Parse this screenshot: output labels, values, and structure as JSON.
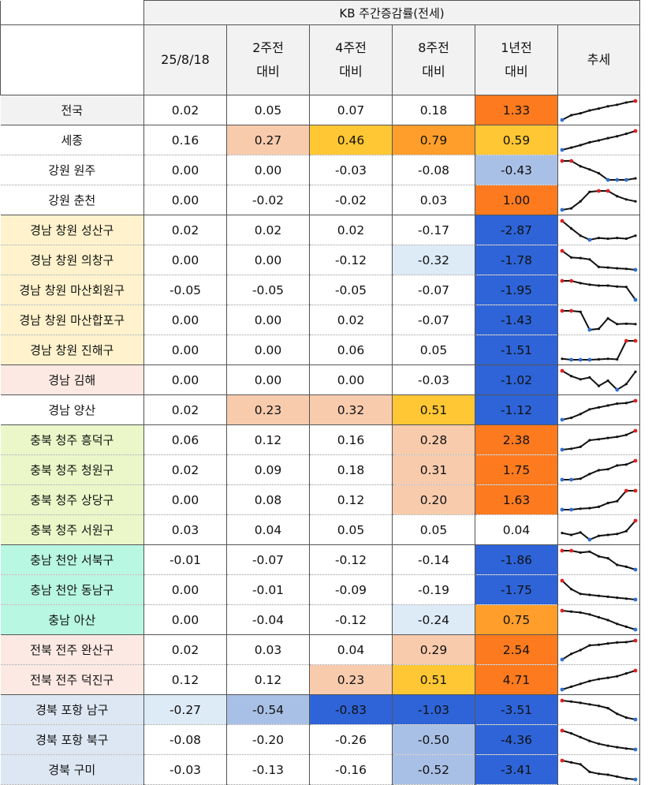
{
  "table": {
    "title": "KB 주간증감률(전세)",
    "columns": [
      {
        "line1": "25/8/18",
        "line2": ""
      },
      {
        "line1": "2주전",
        "line2": "대비"
      },
      {
        "line1": "4주전",
        "line2": "대비"
      },
      {
        "line1": "8주전",
        "line2": "대비"
      },
      {
        "line1": "1년전",
        "line2": "대비"
      },
      {
        "line1": "추세",
        "line2": ""
      }
    ],
    "rows": [
      {
        "region": "전국",
        "regionBg": "#f2f2f2",
        "values": [
          "0.02",
          "0.05",
          "0.07",
          "0.18",
          "1.33"
        ],
        "bgs": [
          "",
          "",
          "",
          "",
          "#fe7a1e"
        ],
        "trend": [
          0.0,
          0.25,
          0.35,
          0.5,
          0.6,
          0.72,
          0.8,
          0.92,
          1.0
        ],
        "groupTop": true
      },
      {
        "region": "세종",
        "regionBg": "#ffffff",
        "values": [
          "0.16",
          "0.27",
          "0.46",
          "0.79",
          "0.59"
        ],
        "bgs": [
          "",
          "#f8cbad",
          "#ffc733",
          "#ff9e2a",
          "#ffc733"
        ],
        "trend": [
          0.0,
          0.12,
          0.25,
          0.4,
          0.5,
          0.62,
          0.72,
          0.85,
          1.0
        ],
        "groupTop": true
      },
      {
        "region": "강원 원주",
        "regionBg": "#ffffff",
        "values": [
          "0.00",
          "0.00",
          "-0.03",
          "-0.08",
          "-0.43"
        ],
        "bgs": [
          "",
          "",
          "",
          "",
          "#a9c0e6"
        ],
        "trend": [
          1.0,
          1.0,
          0.72,
          0.55,
          0.35,
          0.0,
          0.0,
          0.0,
          0.08
        ]
      },
      {
        "region": "강원 춘천",
        "regionBg": "#ffffff",
        "values": [
          "0.00",
          "-0.02",
          "-0.02",
          "0.03",
          "1.00"
        ],
        "bgs": [
          "",
          "",
          "",
          "",
          "#fe7a1e"
        ],
        "trend": [
          0.0,
          0.08,
          0.45,
          0.95,
          1.0,
          1.0,
          0.72,
          0.55,
          0.45
        ]
      },
      {
        "region": "경남 창원 성산구",
        "regionBg": "#fff2cc",
        "values": [
          "0.02",
          "0.02",
          "0.02",
          "-0.17",
          "-2.87"
        ],
        "bgs": [
          "",
          "",
          "",
          "",
          "#2e64d8"
        ],
        "trend": [
          1.0,
          0.6,
          0.22,
          0.0,
          0.1,
          0.06,
          0.1,
          0.06,
          0.22
        ],
        "groupTop": true
      },
      {
        "region": "경남 창원 의창구",
        "regionBg": "#fff2cc",
        "values": [
          "0.00",
          "0.00",
          "-0.12",
          "-0.32",
          "-1.78"
        ],
        "bgs": [
          "",
          "",
          "",
          "#ddebf7",
          "#2e64d8"
        ],
        "trend": [
          1.0,
          0.65,
          0.62,
          0.55,
          0.15,
          0.12,
          0.08,
          0.05,
          0.0
        ]
      },
      {
        "region": "경남 창원 마산회원구",
        "regionBg": "#fff2cc",
        "values": [
          "-0.05",
          "-0.05",
          "-0.05",
          "-0.07",
          "-1.95"
        ],
        "bgs": [
          "",
          "",
          "",
          "",
          "#2e64d8"
        ],
        "trend": [
          1.0,
          1.0,
          0.88,
          0.8,
          0.75,
          0.75,
          0.7,
          0.68,
          0.0
        ]
      },
      {
        "region": "경남 창원 마산합포구",
        "regionBg": "#fff2cc",
        "values": [
          "0.00",
          "0.00",
          "0.02",
          "-0.07",
          "-1.43"
        ],
        "bgs": [
          "",
          "",
          "",
          "",
          "#2e64d8"
        ],
        "trend": [
          1.0,
          1.0,
          0.95,
          0.0,
          0.05,
          0.6,
          0.3,
          0.32,
          0.3
        ]
      },
      {
        "region": "경남 창원 진해구",
        "regionBg": "#fff2cc",
        "values": [
          "0.00",
          "0.00",
          "0.06",
          "0.05",
          "-1.51"
        ],
        "bgs": [
          "",
          "",
          "",
          "",
          "#2e64d8"
        ],
        "trend": [
          0.05,
          0.0,
          0.0,
          0.0,
          0.02,
          0.05,
          0.02,
          1.0,
          1.0
        ]
      },
      {
        "region": "경남 김해",
        "regionBg": "#fde9e3",
        "values": [
          "0.00",
          "0.00",
          "0.00",
          "-0.03",
          "-1.02"
        ],
        "bgs": [
          "",
          "",
          "",
          "",
          "#2e64d8"
        ],
        "trend": [
          1.0,
          0.72,
          0.55,
          0.65,
          0.2,
          0.48,
          0.0,
          0.3,
          0.95
        ],
        "groupTop": true
      },
      {
        "region": "경남 양산",
        "regionBg": "#ffffff",
        "values": [
          "0.02",
          "0.23",
          "0.32",
          "0.51",
          "-1.12"
        ],
        "bgs": [
          "",
          "#f8cbad",
          "#f8cbad",
          "#ffc733",
          "#2e64d8"
        ],
        "trend": [
          0.0,
          0.1,
          0.3,
          0.55,
          0.65,
          0.75,
          0.85,
          0.88,
          1.0
        ],
        "groupTop": true
      },
      {
        "region": "충북 청주 흥덕구",
        "regionBg": "#ebf7c8",
        "values": [
          "0.06",
          "0.12",
          "0.16",
          "0.28",
          "2.38"
        ],
        "bgs": [
          "",
          "",
          "",
          "#f8cbad",
          "#fe7a1e"
        ],
        "trend": [
          0.0,
          0.05,
          0.15,
          0.5,
          0.55,
          0.62,
          0.68,
          0.78,
          1.0
        ],
        "groupTop": true
      },
      {
        "region": "충북 청주 청원구",
        "regionBg": "#ebf7c8",
        "values": [
          "0.02",
          "0.09",
          "0.18",
          "0.31",
          "1.75"
        ],
        "bgs": [
          "",
          "",
          "",
          "#f8cbad",
          "#fe7a1e"
        ],
        "trend": [
          0.0,
          0.0,
          0.05,
          0.3,
          0.5,
          0.55,
          0.75,
          0.8,
          1.0
        ]
      },
      {
        "region": "충북 청주 상당구",
        "regionBg": "#ebf7c8",
        "values": [
          "0.00",
          "0.08",
          "0.12",
          "0.20",
          "1.63"
        ],
        "bgs": [
          "",
          "",
          "",
          "#f8cbad",
          "#fe7a1e"
        ],
        "trend": [
          0.0,
          0.0,
          0.05,
          0.08,
          0.15,
          0.35,
          0.45,
          1.0,
          1.0
        ]
      },
      {
        "region": "충북 청주 서원구",
        "regionBg": "#ebf7c8",
        "values": [
          "0.03",
          "0.04",
          "0.05",
          "0.05",
          "0.04"
        ],
        "bgs": [
          "",
          "",
          "",
          "",
          ""
        ],
        "trend": [
          0.35,
          0.25,
          0.38,
          0.0,
          0.2,
          0.25,
          0.3,
          0.45,
          1.0
        ]
      },
      {
        "region": "충남 천안 서북구",
        "regionBg": "#b8f7e2",
        "values": [
          "-0.01",
          "-0.07",
          "-0.12",
          "-0.14",
          "-1.86"
        ],
        "bgs": [
          "",
          "",
          "",
          "",
          "#2e64d8"
        ],
        "trend": [
          1.0,
          1.0,
          0.9,
          0.95,
          0.7,
          0.6,
          0.25,
          0.15,
          0.0
        ],
        "groupTop": true
      },
      {
        "region": "충남 천안 동남구",
        "regionBg": "#b8f7e2",
        "values": [
          "0.00",
          "-0.01",
          "-0.09",
          "-0.19",
          "-1.75"
        ],
        "bgs": [
          "",
          "",
          "",
          "",
          "#2e64d8"
        ],
        "trend": [
          1.0,
          0.55,
          0.3,
          0.25,
          0.2,
          0.15,
          0.1,
          0.05,
          0.0
        ]
      },
      {
        "region": "충남 아산",
        "regionBg": "#b8f7e2",
        "values": [
          "0.00",
          "-0.04",
          "-0.12",
          "-0.24",
          "0.75"
        ],
        "bgs": [
          "",
          "",
          "",
          "#ddebf7",
          "#ff9e2a"
        ],
        "trend": [
          1.0,
          0.95,
          0.9,
          0.8,
          0.65,
          0.5,
          0.3,
          0.15,
          0.0
        ]
      },
      {
        "region": "전북 전주 완산구",
        "regionBg": "#fde9e3",
        "values": [
          "0.02",
          "0.03",
          "0.04",
          "0.29",
          "2.54"
        ],
        "bgs": [
          "",
          "",
          "",
          "#f8cbad",
          "#fe7a1e"
        ],
        "trend": [
          0.0,
          0.3,
          0.5,
          0.75,
          0.78,
          0.85,
          0.9,
          0.92,
          1.0
        ],
        "groupTop": true
      },
      {
        "region": "전북 전주 덕진구",
        "regionBg": "#fde9e3",
        "values": [
          "0.12",
          "0.12",
          "0.23",
          "0.51",
          "4.71"
        ],
        "bgs": [
          "",
          "",
          "#f8cbad",
          "#ffc733",
          "#fe7a1e"
        ],
        "trend": [
          0.0,
          0.15,
          0.3,
          0.45,
          0.55,
          0.62,
          0.7,
          0.85,
          1.0
        ]
      },
      {
        "region": "경북 포항 남구",
        "regionBg": "#dde7f3",
        "values": [
          "-0.27",
          "-0.54",
          "-0.83",
          "-1.03",
          "-3.51"
        ],
        "bgs": [
          "#ddebf7",
          "#a9c0e6",
          "#2e64d8",
          "#2e64d8",
          "#2e64d8"
        ],
        "trend": [
          1.0,
          0.95,
          0.88,
          0.8,
          0.72,
          0.6,
          0.3,
          0.1,
          0.0
        ],
        "groupTop": true
      },
      {
        "region": "경북 포항 북구",
        "regionBg": "#dde7f3",
        "values": [
          "-0.08",
          "-0.20",
          "-0.26",
          "-0.50",
          "-4.36"
        ],
        "bgs": [
          "",
          "",
          "",
          "#a9c0e6",
          "#2e64d8"
        ],
        "trend": [
          1.0,
          0.85,
          0.65,
          0.45,
          0.3,
          0.2,
          0.12,
          0.05,
          0.0
        ]
      },
      {
        "region": "경북 구미",
        "regionBg": "#dde7f3",
        "values": [
          "-0.03",
          "-0.13",
          "-0.16",
          "-0.52",
          "-3.41"
        ],
        "bgs": [
          "",
          "",
          "",
          "#a9c0e6",
          "#2e64d8"
        ],
        "trend": [
          1.0,
          0.9,
          0.8,
          0.4,
          0.3,
          0.25,
          0.15,
          0.05,
          0.0
        ]
      }
    ]
  },
  "colors": {
    "trendLine": "#111111",
    "trendMax": "#e02020",
    "trendMin": "#2f6fd0"
  }
}
